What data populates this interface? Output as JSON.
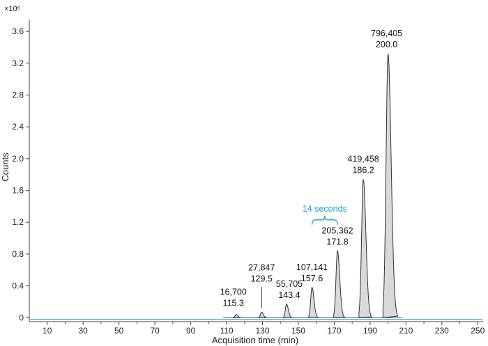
{
  "chart_data": {
    "type": "line",
    "xlabel": "Acquisition time (min)",
    "ylabel": "Counts",
    "y_exponent_label": "×10⁵",
    "xlim": [
      0,
      253
    ],
    "ylim": [
      -0.05,
      3.75
    ],
    "x_ticks": [
      10,
      30,
      50,
      70,
      90,
      110,
      130,
      150,
      170,
      190,
      210,
      230,
      250
    ],
    "y_ticks": [
      0,
      0.4,
      0.8,
      1.2,
      1.6,
      2.0,
      2.4,
      2.8,
      3.2,
      3.6
    ],
    "y_tick_labels": [
      "0",
      "0.4",
      "0.8",
      "1.2",
      "1.6",
      "2.0",
      "2.4",
      "2.8",
      "3.2",
      "3.6"
    ],
    "baseline_color": "#29a8d8",
    "peak_fill": "#d9d9d9",
    "peak_stroke": "#333333",
    "peaks": [
      {
        "x": 115.3,
        "height": 0.04,
        "area": "16,700",
        "time": "115.3"
      },
      {
        "x": 129.5,
        "height": 0.07,
        "area": "27,847",
        "time": "129.5"
      },
      {
        "x": 143.4,
        "height": 0.17,
        "area": "55,705",
        "time": "143.4"
      },
      {
        "x": 157.6,
        "height": 0.38,
        "area": "107,141",
        "time": "157.6"
      },
      {
        "x": 171.8,
        "height": 0.84,
        "area": "205,362",
        "time": "171.8"
      },
      {
        "x": 186.2,
        "height": 1.74,
        "area": "419,458",
        "time": "186.2"
      },
      {
        "x": 200.0,
        "height": 3.32,
        "area": "796,405",
        "time": "200.0"
      }
    ],
    "annotation": {
      "text": "14 seconds",
      "color": "#1aa3d1",
      "from_x": 157.6,
      "to_x": 171.8
    }
  }
}
